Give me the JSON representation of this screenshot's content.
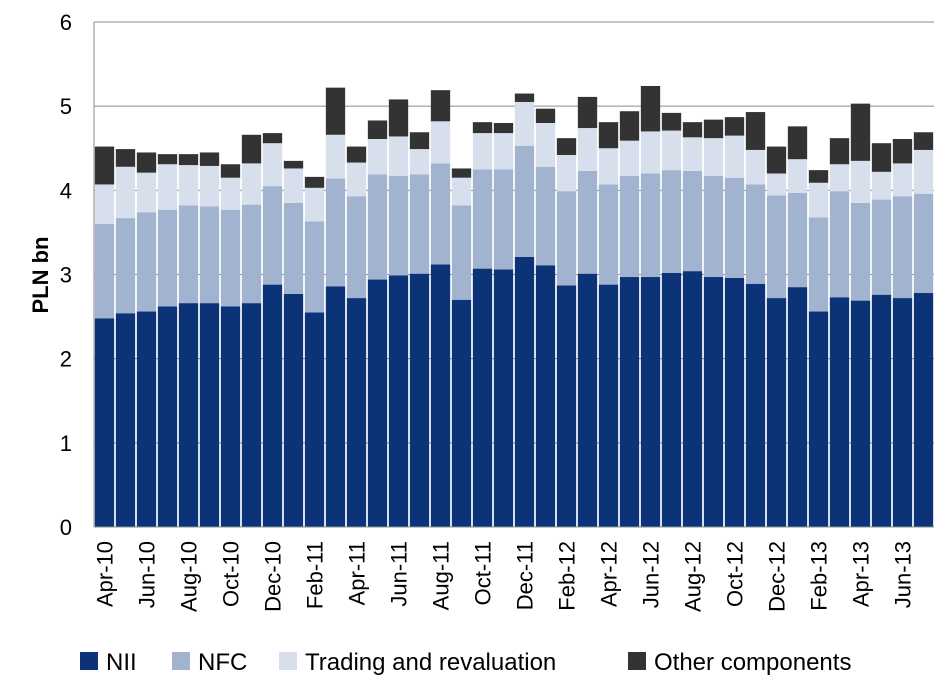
{
  "chart_data": {
    "type": "bar",
    "stacked": true,
    "ylabel": "PLN bn",
    "ylim": [
      0,
      6
    ],
    "yticks": [
      0,
      1,
      2,
      3,
      4,
      5,
      6
    ],
    "grid": true,
    "legend_position": "bottom",
    "categories": [
      "Apr-10",
      "May-10",
      "Jun-10",
      "Jul-10",
      "Aug-10",
      "Sep-10",
      "Oct-10",
      "Nov-10",
      "Dec-10",
      "Jan-11",
      "Feb-11",
      "Mar-11",
      "Apr-11",
      "May-11",
      "Jun-11",
      "Jul-11",
      "Aug-11",
      "Sep-11",
      "Oct-11",
      "Nov-11",
      "Dec-11",
      "Jan-12",
      "Feb-12",
      "Mar-12",
      "Apr-12",
      "May-12",
      "Jun-12",
      "Jul-12",
      "Aug-12",
      "Sep-12",
      "Oct-12",
      "Nov-12",
      "Dec-12",
      "Jan-13",
      "Feb-13",
      "Mar-13",
      "Apr-13",
      "May-13",
      "Jun-13",
      "Jul-13"
    ],
    "visible_tick_labels": [
      "Apr-10",
      "Jun-10",
      "Aug-10",
      "Oct-10",
      "Dec-10",
      "Feb-11",
      "Apr-11",
      "Jun-11",
      "Aug-11",
      "Oct-11",
      "Dec-11",
      "Feb-12",
      "Apr-12",
      "Jun-12",
      "Aug-12",
      "Oct-12",
      "Dec-12",
      "Feb-13",
      "Apr-13",
      "Jun-13"
    ],
    "series": [
      {
        "name": "NII",
        "color": "#0c3378",
        "values": [
          2.48,
          2.54,
          2.56,
          2.62,
          2.66,
          2.66,
          2.62,
          2.66,
          2.88,
          2.77,
          2.55,
          2.86,
          2.72,
          2.94,
          2.99,
          3.01,
          3.12,
          2.7,
          3.07,
          3.06,
          3.21,
          3.11,
          2.87,
          3.01,
          2.88,
          2.97,
          2.97,
          3.02,
          3.04,
          2.97,
          2.96,
          2.89,
          2.72,
          2.85,
          2.56,
          2.73,
          2.69,
          2.76,
          2.72,
          2.78
        ]
      },
      {
        "name": "NFC",
        "color": "#a1b3cf",
        "values": [
          1.12,
          1.13,
          1.18,
          1.15,
          1.16,
          1.15,
          1.15,
          1.17,
          1.17,
          1.08,
          1.08,
          1.28,
          1.21,
          1.25,
          1.18,
          1.18,
          1.2,
          1.12,
          1.18,
          1.19,
          1.32,
          1.17,
          1.12,
          1.22,
          1.19,
          1.2,
          1.23,
          1.22,
          1.19,
          1.2,
          1.19,
          1.18,
          1.22,
          1.12,
          1.12,
          1.26,
          1.16,
          1.13,
          1.21,
          1.18
        ]
      },
      {
        "name": "Trading and revaluation",
        "color": "#d7dfec",
        "values": [
          0.47,
          0.61,
          0.47,
          0.54,
          0.48,
          0.48,
          0.38,
          0.49,
          0.51,
          0.41,
          0.4,
          0.52,
          0.4,
          0.42,
          0.47,
          0.3,
          0.5,
          0.33,
          0.43,
          0.43,
          0.52,
          0.52,
          0.43,
          0.51,
          0.43,
          0.42,
          0.5,
          0.47,
          0.4,
          0.45,
          0.5,
          0.41,
          0.26,
          0.4,
          0.41,
          0.32,
          0.5,
          0.33,
          0.39,
          0.52
        ]
      },
      {
        "name": "Other components",
        "color": "#333333",
        "values": [
          0.45,
          0.21,
          0.24,
          0.12,
          0.13,
          0.16,
          0.16,
          0.34,
          0.12,
          0.09,
          0.13,
          0.56,
          0.19,
          0.22,
          0.44,
          0.2,
          0.37,
          0.11,
          0.13,
          0.12,
          0.1,
          0.17,
          0.2,
          0.37,
          0.31,
          0.35,
          0.54,
          0.21,
          0.18,
          0.22,
          0.22,
          0.45,
          0.32,
          0.39,
          0.15,
          0.31,
          0.68,
          0.34,
          0.29,
          0.21
        ]
      }
    ]
  }
}
